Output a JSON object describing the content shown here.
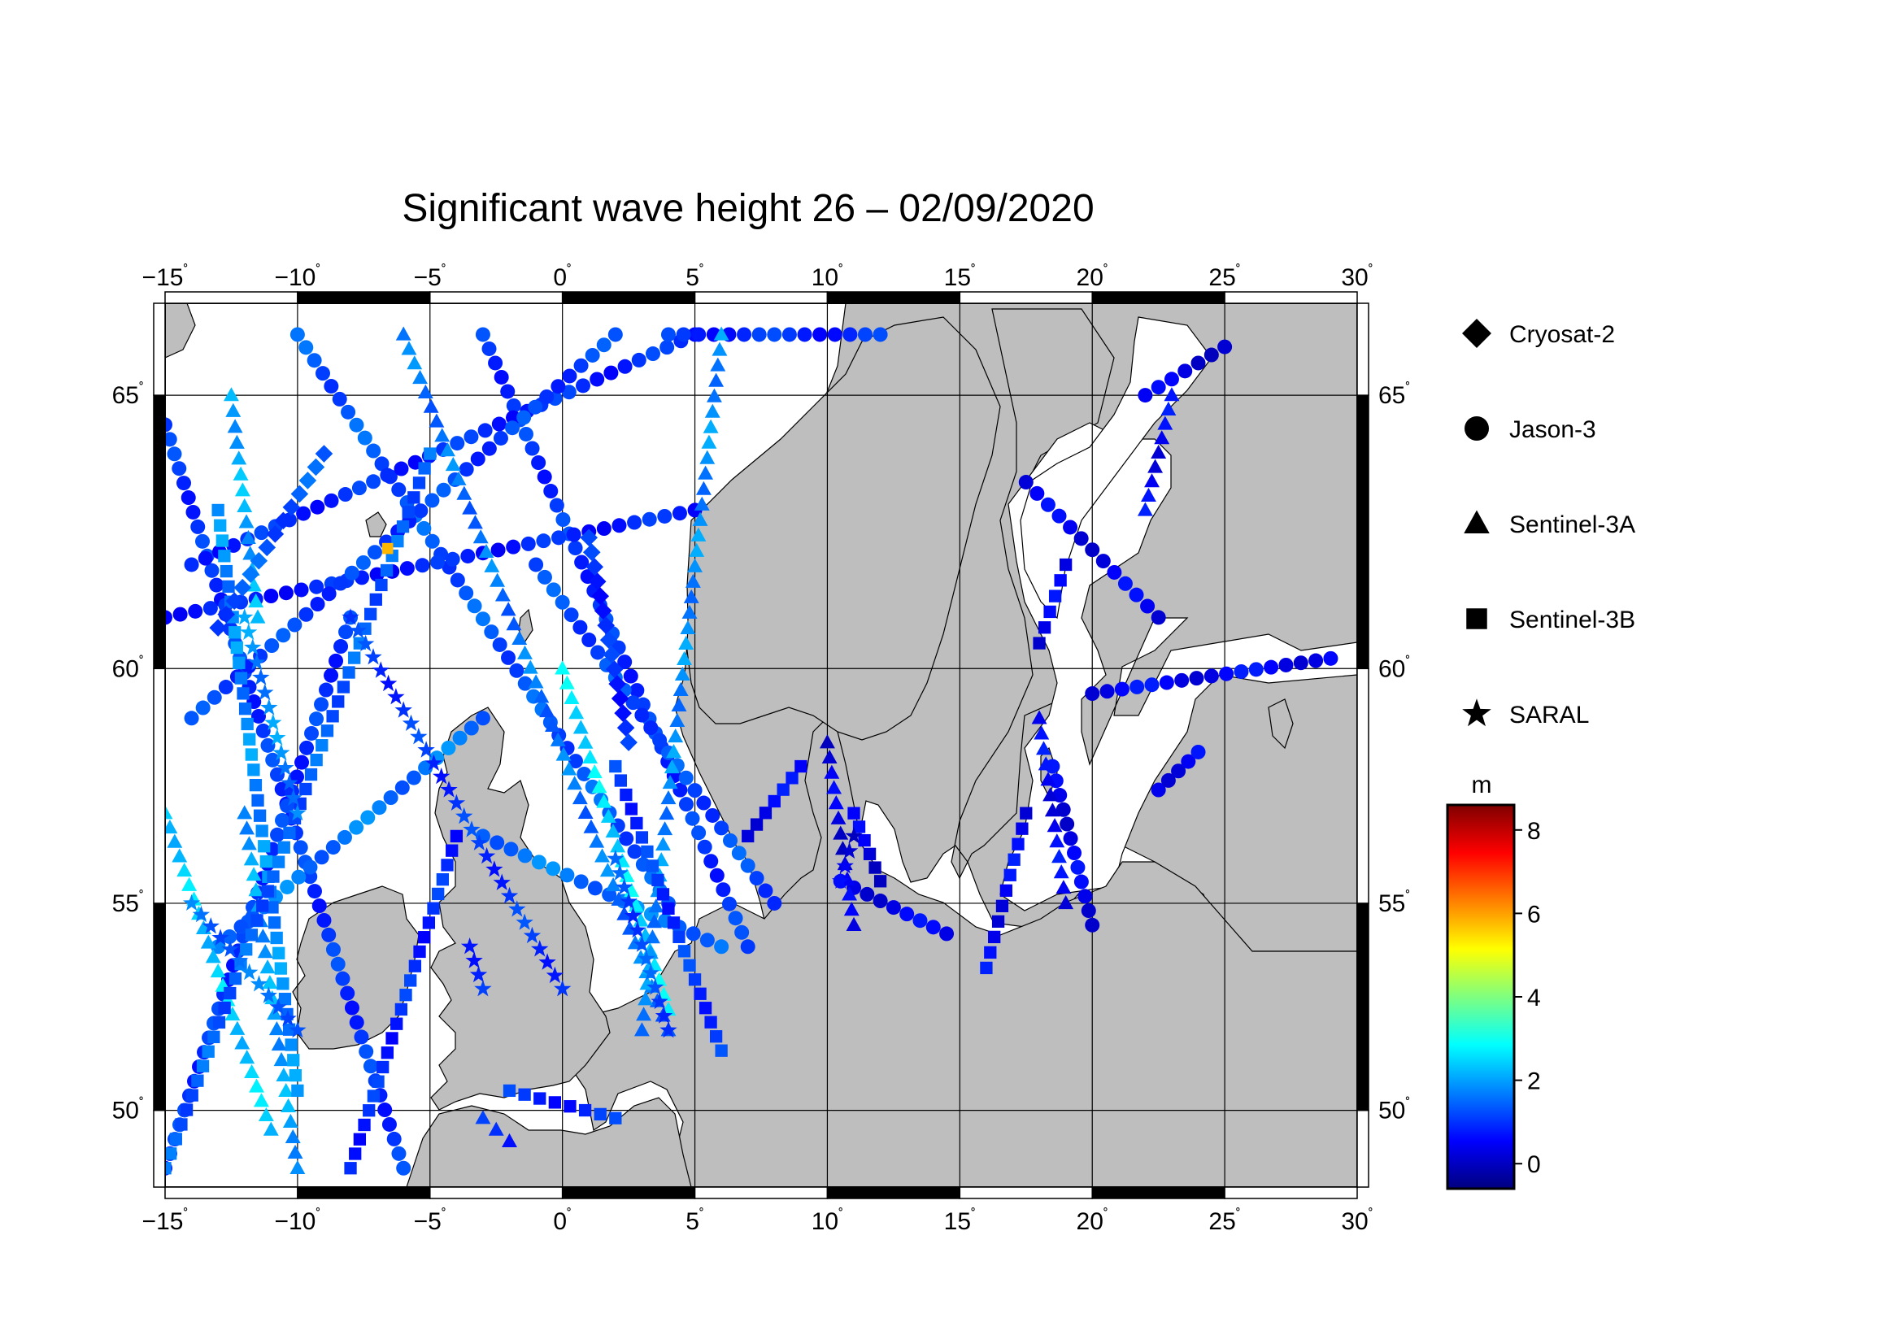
{
  "title": "Significant wave height 26 – 02/09/2020",
  "map": {
    "lon_range": [
      -15,
      30
    ],
    "lat_range": [
      48,
      66.5
    ],
    "lon_ticks": [
      -15,
      -10,
      -5,
      0,
      5,
      10,
      15,
      20,
      25,
      30
    ],
    "lat_ticks": [
      50,
      55,
      60,
      65
    ],
    "lon_labels": [
      "−15",
      "−10",
      "−5",
      "0",
      "5",
      "10",
      "15",
      "20",
      "25",
      "30"
    ],
    "lat_labels": [
      "50",
      "55",
      "60",
      "65"
    ],
    "degree_symbol": "˚",
    "land_color": "#bebebe",
    "ocean_color": "#ffffff",
    "grid": true
  },
  "legend": {
    "items": [
      {
        "label": "Cryosat-2",
        "icon": "diamond-icon"
      },
      {
        "label": "Jason-3",
        "icon": "circle-icon"
      },
      {
        "label": "Sentinel-3A",
        "icon": "triangle-icon"
      },
      {
        "label": "Sentinel-3B",
        "icon": "square-icon"
      },
      {
        "label": "SARAL",
        "icon": "star-icon"
      }
    ]
  },
  "colorbar": {
    "unit": "m",
    "range": [
      -0.6,
      8.6
    ],
    "ticks": [
      0,
      2,
      4,
      6,
      8
    ],
    "tick_labels": [
      "0",
      "2",
      "4",
      "6",
      "8"
    ],
    "colors": [
      "#00007f",
      "#0000ff",
      "#007fff",
      "#00ffff",
      "#7fff7f",
      "#ffff00",
      "#ff7f00",
      "#ff0000",
      "#7f0000"
    ]
  },
  "chart_data": {
    "type": "scatter",
    "title": "Significant wave height 26 – 02/09/2020",
    "xlabel": "",
    "ylabel": "",
    "xlim": [
      -15,
      30
    ],
    "ylim": [
      48,
      66.5
    ],
    "value_unit": "m",
    "series": [
      {
        "name": "Jason-3",
        "marker": "circle",
        "tracks": [
          {
            "start": [
              -15,
              64.5
            ],
            "end": [
              -6,
              48.5
            ],
            "value": 1.0
          },
          {
            "start": [
              -10,
              66
            ],
            "end": [
              4,
              55
            ],
            "value": 1.3
          },
          {
            "start": [
              -3,
              66
            ],
            "end": [
              7,
              54
            ],
            "value": 1.0
          },
          {
            "start": [
              -14,
              62
            ],
            "end": [
              5,
              66
            ],
            "value": 0.9
          },
          {
            "start": [
              -15,
              61
            ],
            "end": [
              5,
              63
            ],
            "value": 0.8
          },
          {
            "start": [
              -15,
              48.5
            ],
            "end": [
              -8,
              61
            ],
            "value": 1.0
          },
          {
            "start": [
              -1,
              62
            ],
            "end": [
              8,
              55
            ],
            "value": 1.2
          },
          {
            "start": [
              -14,
              59
            ],
            "end": [
              2,
              66
            ],
            "value": 1.1
          },
          {
            "start": [
              4,
              66
            ],
            "end": [
              12,
              66
            ],
            "value": 0.9
          },
          {
            "start": [
              -13,
              54
            ],
            "end": [
              -3,
              59
            ],
            "value": 1.6
          },
          {
            "start": [
              -3,
              56.5
            ],
            "end": [
              6,
              54
            ],
            "value": 1.6
          },
          {
            "start": [
              20,
              59.5
            ],
            "end": [
              29,
              60.2
            ],
            "value": 0.5
          },
          {
            "start": [
              17.5,
              63.5
            ],
            "end": [
              22.5,
              61
            ],
            "value": 0.4
          },
          {
            "start": [
              22,
              65
            ],
            "end": [
              25,
              65.8
            ],
            "value": 0.3
          },
          {
            "start": [
              18.5,
              58
            ],
            "end": [
              20,
              54.5
            ],
            "value": 0.4
          },
          {
            "start": [
              10.5,
              55.5
            ],
            "end": [
              14.5,
              54.3
            ],
            "value": 0.4
          },
          {
            "start": [
              22.5,
              57.5
            ],
            "end": [
              24,
              58.3
            ],
            "value": 0.5
          }
        ]
      },
      {
        "name": "Sentinel-3A",
        "marker": "triangle",
        "tracks": [
          {
            "start": [
              -6,
              66
            ],
            "end": [
              4,
              52
            ],
            "value": 1.6
          },
          {
            "start": [
              0,
              60
            ],
            "end": [
              4,
              52.5
            ],
            "value": 2.6
          },
          {
            "start": [
              6,
              66
            ],
            "end": [
              3,
              52
            ],
            "value": 1.8
          },
          {
            "start": [
              -15,
              57
            ],
            "end": [
              -11,
              49.5
            ],
            "value": 2.4
          },
          {
            "start": [
              -12,
              57
            ],
            "end": [
              -10,
              48.5
            ],
            "value": 2.0
          },
          {
            "start": [
              10,
              58.5
            ],
            "end": [
              11,
              54.5
            ],
            "value": 0.3
          },
          {
            "start": [
              18,
              59
            ],
            "end": [
              19,
              55
            ],
            "value": 0.5
          },
          {
            "start": [
              23,
              65
            ],
            "end": [
              22,
              63
            ],
            "value": 0.5
          },
          {
            "start": [
              -3,
              49.8
            ],
            "end": [
              -2,
              49.2
            ],
            "value": 0.8
          },
          {
            "start": [
              -12.5,
              65
            ],
            "end": [
              -11.5,
              61
            ],
            "value": 2.1
          }
        ]
      },
      {
        "name": "Sentinel-3B",
        "marker": "square",
        "tracks": [
          {
            "start": [
              -13,
              63
            ],
            "end": [
              -10,
              50.5
            ],
            "value": 1.8
          },
          {
            "start": [
              -15,
              48.5
            ],
            "end": [
              -5,
              64
            ],
            "value": 1.4
          },
          {
            "start": [
              2,
              58
            ],
            "end": [
              6,
              51.5
            ],
            "value": 1.0
          },
          {
            "start": [
              -8,
              48.5
            ],
            "end": [
              -4,
              56.5
            ],
            "value": 0.9
          },
          {
            "start": [
              7,
              56.5
            ],
            "end": [
              9,
              58
            ],
            "value": 0.5
          },
          {
            "start": [
              17.5,
              57
            ],
            "end": [
              16,
              53.5
            ],
            "value": 0.5
          },
          {
            "start": [
              19,
              62
            ],
            "end": [
              18,
              60.5
            ],
            "value": 0.4
          },
          {
            "start": [
              11,
              57
            ],
            "end": [
              12,
              55.5
            ],
            "value": 0.3
          },
          {
            "start": [
              -2,
              50.5
            ],
            "end": [
              2,
              49.8
            ],
            "value": 0.9
          }
        ]
      },
      {
        "name": "SARAL",
        "marker": "star",
        "tracks": [
          {
            "start": [
              -8,
              61
            ],
            "end": [
              0,
              53
            ],
            "value": 1.0
          },
          {
            "start": [
              2,
              56
            ],
            "end": [
              4,
              52
            ],
            "value": 1.2
          },
          {
            "start": [
              -14,
              55
            ],
            "end": [
              -10,
              52
            ],
            "value": 1.5
          },
          {
            "start": [
              -10,
              57
            ],
            "end": [
              -12,
              61
            ],
            "value": 1.8
          },
          {
            "start": [
              -3.5,
              54
            ],
            "end": [
              -3,
              53
            ],
            "value": 1.0
          },
          {
            "start": [
              11,
              56.5
            ],
            "end": [
              10.5,
              55.5
            ],
            "value": 0.3
          }
        ]
      },
      {
        "name": "Cryosat-2",
        "marker": "diamond",
        "tracks": [
          {
            "start": [
              -9,
              64
            ],
            "end": [
              -13,
              60.8
            ],
            "value": 1.3
          },
          {
            "start": [
              1,
              62.5
            ],
            "end": [
              2.5,
              58.5
            ],
            "value": 0.9
          }
        ]
      }
    ],
    "highlight_points": [
      {
        "lon": -6.6,
        "lat": 62.3,
        "value": 5.8,
        "marker": "square"
      }
    ]
  }
}
